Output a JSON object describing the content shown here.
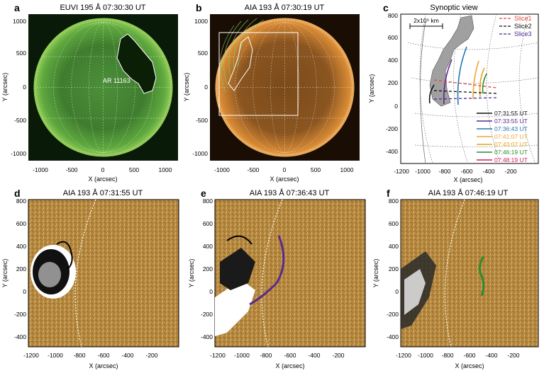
{
  "panels": [
    {
      "letter": "a",
      "title": "EUVI 195 Å 07:30:30 UT",
      "ylabel": "Y (arcsec)",
      "xlabel": "X (arcsec)",
      "xticks": [
        "-1000",
        "-500",
        "0",
        "500",
        "1000"
      ],
      "yticks": [
        "1000",
        "500",
        "0",
        "-500",
        "-1000"
      ],
      "annotation": "AR 11163"
    },
    {
      "letter": "b",
      "title": "AIA 193 Å 07:30:19 UT",
      "ylabel": "Y (arcsec)",
      "xlabel": "X (arcsec)",
      "xticks": [
        "-1000",
        "-500",
        "0",
        "500",
        "1000"
      ],
      "yticks": [
        "1000",
        "500",
        "0",
        "-500",
        "-1000"
      ]
    },
    {
      "letter": "c",
      "title": "Synoptic view",
      "ylabel": "Y (arcsec)",
      "xlabel": "X (arcsec)",
      "xticks": [
        "-1200",
        "-1000",
        "-800",
        "-600",
        "-400",
        "-200"
      ],
      "yticks": [
        "800",
        "600",
        "400",
        "200",
        "0",
        "-200",
        "-400"
      ],
      "scalebar": "2x10⁵ km"
    },
    {
      "letter": "d",
      "title": "AIA 193 Å 07:31:55 UT",
      "ylabel": "Y (arcsec)",
      "xlabel": "X (arcsec)",
      "xticks": [
        "-1200",
        "-1000",
        "-800",
        "-600",
        "-400",
        "-200"
      ],
      "yticks": [
        "800",
        "600",
        "400",
        "200",
        "0",
        "-200",
        "-400"
      ]
    },
    {
      "letter": "e",
      "title": "AIA 193 Å 07:36:43 UT",
      "ylabel": "Y (arcsec)",
      "xlabel": "X (arcsec)",
      "xticks": [
        "-1200",
        "-1000",
        "-800",
        "-600",
        "-400",
        "-200"
      ],
      "yticks": [
        "800",
        "600",
        "400",
        "200",
        "0",
        "-200",
        "-400"
      ]
    },
    {
      "letter": "f",
      "title": "AIA 193 Å 07:46:19 UT",
      "ylabel": "Y (arcsec)",
      "xlabel": "X (arcsec)",
      "xticks": [
        "-1200",
        "-1000",
        "-800",
        "-600",
        "-400",
        "-200"
      ],
      "yticks": [
        "800",
        "600",
        "400",
        "200",
        "0",
        "-200",
        "-400"
      ]
    }
  ],
  "slices": [
    {
      "label": "Slice1",
      "color": "#e8453c"
    },
    {
      "label": "Slice2",
      "color": "#111111"
    },
    {
      "label": "Slice3",
      "color": "#4b2a8f"
    }
  ],
  "times": [
    {
      "label": "07:31:55 UT",
      "color": "#111111"
    },
    {
      "label": "07:33:55 UT",
      "color": "#5b2a8c"
    },
    {
      "label": "07:36:43 UT",
      "color": "#1f77b4"
    },
    {
      "label": "07:41:07 UT",
      "color": "#f0a43a"
    },
    {
      "label": "07:43:07 UT",
      "color": "#e8a317"
    },
    {
      "label": "07:46:19 UT",
      "color": "#2e8b2e"
    },
    {
      "label": "07:48:19 UT",
      "color": "#d81b60"
    }
  ]
}
